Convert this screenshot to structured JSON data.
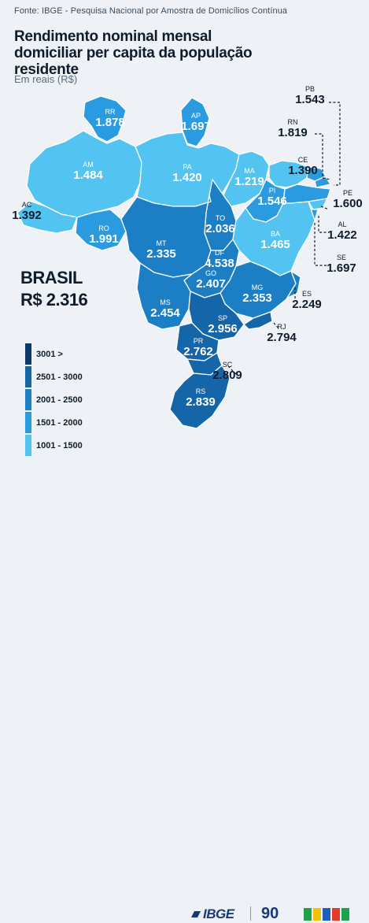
{
  "source": "Fonte: IBGE - Pesquisa Nacional por Amostra de Domicílios Contínua",
  "title": "Rendimento nominal mensal domiciliar per capita da população residente",
  "subtitle": "Em reais (R$)",
  "brasil": {
    "label": "BRASIL",
    "value": "R$ 2.316"
  },
  "legend": [
    {
      "label": "3001 >",
      "color": "#0b3b66"
    },
    {
      "label": "2501 - 3000",
      "color": "#1566a8"
    },
    {
      "label": "2001 - 2500",
      "color": "#1c7fc6"
    },
    {
      "label": "1501 - 2000",
      "color": "#2a9be0"
    },
    {
      "label": "1001 - 1500",
      "color": "#53c3f2"
    }
  ],
  "states": [
    {
      "abbr": "RR",
      "value": "1.878",
      "color": "#2a9be0"
    },
    {
      "abbr": "AP",
      "value": "1.697",
      "color": "#2a9be0"
    },
    {
      "abbr": "AM",
      "value": "1.484",
      "color": "#53c3f2"
    },
    {
      "abbr": "PA",
      "value": "1.420",
      "color": "#53c3f2"
    },
    {
      "abbr": "MA",
      "value": "1.219",
      "color": "#53c3f2"
    },
    {
      "abbr": "CE",
      "value": "1.390",
      "color": "#53c3f2"
    },
    {
      "abbr": "PI",
      "value": "1.546",
      "color": "#2a9be0"
    },
    {
      "abbr": "RN",
      "value": "1.819",
      "color": "#2a9be0"
    },
    {
      "abbr": "PB",
      "value": "1.543",
      "color": "#2a9be0"
    },
    {
      "abbr": "PE",
      "value": "1.600",
      "color": "#2a9be0"
    },
    {
      "abbr": "AL",
      "value": "1.422",
      "color": "#53c3f2"
    },
    {
      "abbr": "SE",
      "value": "1.697",
      "color": "#2a9be0"
    },
    {
      "abbr": "AC",
      "value": "1.392",
      "color": "#53c3f2"
    },
    {
      "abbr": "RO",
      "value": "1.991",
      "color": "#2a9be0"
    },
    {
      "abbr": "TO",
      "value": "2.036",
      "color": "#1c7fc6"
    },
    {
      "abbr": "BA",
      "value": "1.465",
      "color": "#53c3f2"
    },
    {
      "abbr": "MT",
      "value": "2.335",
      "color": "#1c7fc6"
    },
    {
      "abbr": "DF",
      "value": "4.538",
      "color": "#0b3b66"
    },
    {
      "abbr": "GO",
      "value": "2.407",
      "color": "#1c7fc6"
    },
    {
      "abbr": "MG",
      "value": "2.353",
      "color": "#1c7fc6"
    },
    {
      "abbr": "ES",
      "value": "2.249",
      "color": "#1c7fc6"
    },
    {
      "abbr": "MS",
      "value": "2.454",
      "color": "#1c7fc6"
    },
    {
      "abbr": "SP",
      "value": "2.956",
      "color": "#1566a8"
    },
    {
      "abbr": "RJ",
      "value": "2.794",
      "color": "#1566a8"
    },
    {
      "abbr": "PR",
      "value": "2.762",
      "color": "#1566a8"
    },
    {
      "abbr": "SC",
      "value": "2.809",
      "color": "#1566a8"
    },
    {
      "abbr": "RS",
      "value": "2.839",
      "color": "#1566a8"
    }
  ],
  "footer": {
    "ibge": "IBGE",
    "ninety": "90"
  }
}
